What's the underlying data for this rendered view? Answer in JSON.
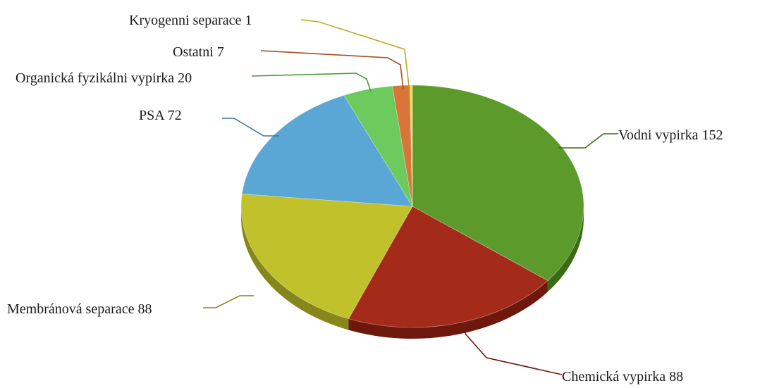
{
  "chart_data": {
    "type": "pie",
    "style": "3d",
    "title": "",
    "legend": "none",
    "slices": [
      {
        "label": "Vodní vypírka",
        "value": 152,
        "display": "Vodni vypirka 152",
        "color": "#5c9a2c",
        "side_color": "#3b6a16"
      },
      {
        "label": "Chemická vypírka",
        "value": 88,
        "display": "Chemická vypirka 88",
        "color": "#a42a1a",
        "side_color": "#6e170c"
      },
      {
        "label": "Membránová separace",
        "value": 88,
        "display": "Membránová separace 88",
        "color": "#c1c12c",
        "side_color": "#86861a"
      },
      {
        "label": "PSA",
        "value": 72,
        "display": "PSA 72",
        "color": "#5aa6d4",
        "side_color": "#34799f"
      },
      {
        "label": "Organická fyzikální vypírka",
        "value": 20,
        "display": "Organická fyzikálni vypirka 20",
        "color": "#6ccb5c",
        "side_color": "#449a36"
      },
      {
        "label": "Ostatní",
        "value": 7,
        "display": "Ostatni 7",
        "color": "#d8763a",
        "side_color": "#a35021"
      },
      {
        "label": "Kryogenní separace",
        "value": 1,
        "display": "Kryogenni separace 1",
        "color": "#f2df4a",
        "side_color": "#bba822"
      }
    ]
  }
}
